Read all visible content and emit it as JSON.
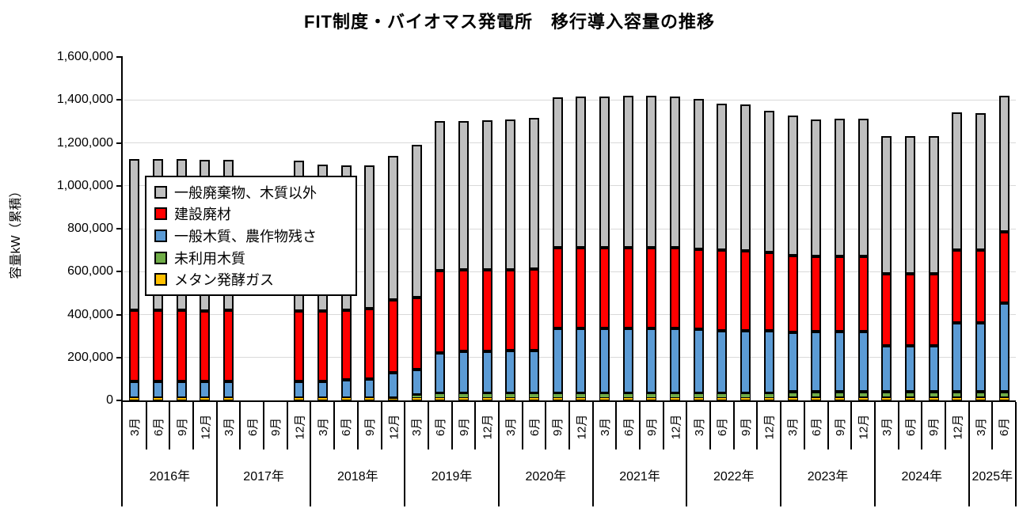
{
  "title": "FIT制度・バイオマス発電所　移行導入容量の推移",
  "y_axis": {
    "label": "容量kW（累積）",
    "tick_labels": [
      "0",
      "200,000",
      "400,000",
      "600,000",
      "800,000",
      "1,000,000",
      "1,200,000",
      "1,400,000",
      "1,600,000"
    ],
    "max": 1600000,
    "step": 200000
  },
  "x_axis": {
    "years": [
      {
        "label": "2016年",
        "months": [
          "3月",
          "6月",
          "9月",
          "12月"
        ]
      },
      {
        "label": "2017年",
        "months": [
          "3月",
          "6月",
          "9月",
          "12月"
        ]
      },
      {
        "label": "2018年",
        "months": [
          "3月",
          "6月",
          "9月",
          "12月"
        ]
      },
      {
        "label": "2019年",
        "months": [
          "3月",
          "6月",
          "9月",
          "12月"
        ]
      },
      {
        "label": "2020年",
        "months": [
          "3月",
          "6月",
          "9月",
          "12月"
        ]
      },
      {
        "label": "2021年",
        "months": [
          "3月",
          "6月",
          "9月",
          "12月"
        ]
      },
      {
        "label": "2022年",
        "months": [
          "3月",
          "6月",
          "9月",
          "12月"
        ]
      },
      {
        "label": "2023年",
        "months": [
          "3月",
          "6月",
          "9月",
          "12月"
        ]
      },
      {
        "label": "2024年",
        "months": [
          "3月",
          "6月",
          "9月",
          "12月"
        ]
      },
      {
        "label": "2025年",
        "months": [
          "3月",
          "6月"
        ]
      }
    ]
  },
  "legend": [
    {
      "name": "一般廃棄物、木質以外",
      "color": "#BFBFBF"
    },
    {
      "name": "建設廃材",
      "color": "#FF0000"
    },
    {
      "name": "一般木質、農作物残さ",
      "color": "#5B9BD5"
    },
    {
      "name": "未利用木質",
      "color": "#70AD47"
    },
    {
      "name": "メタン発酵ガス",
      "color": "#FFC000"
    }
  ],
  "chart_data": {
    "type": "bar",
    "stacked": true,
    "title": "FIT制度・バイオマス発電所　移行導入容量の推移",
    "ylabel": "容量kW（累積）",
    "unit": "kW",
    "ylim": [
      0,
      1600000
    ],
    "grid": true,
    "legend_position": "top-left-inside",
    "categories": [
      "2016年3月",
      "2016年6月",
      "2016年9月",
      "2016年12月",
      "2017年3月",
      "2017年6月",
      "2017年9月",
      "2017年12月",
      "2018年3月",
      "2018年6月",
      "2018年9月",
      "2018年12月",
      "2019年3月",
      "2019年6月",
      "2019年9月",
      "2019年12月",
      "2020年3月",
      "2020年6月",
      "2020年9月",
      "2020年12月",
      "2021年3月",
      "2021年6月",
      "2021年9月",
      "2021年12月",
      "2022年3月",
      "2022年6月",
      "2022年9月",
      "2022年12月",
      "2023年3月",
      "2023年6月",
      "2023年9月",
      "2023年12月",
      "2024年3月",
      "2024年6月",
      "2024年9月",
      "2024年12月",
      "2025年3月",
      "2025年6月"
    ],
    "series": [
      {
        "name": "メタン発酵ガス",
        "color": "#FFC000",
        "values": [
          8000,
          8000,
          8000,
          8000,
          8000,
          0,
          0,
          8000,
          8000,
          8000,
          8000,
          8000,
          10000,
          12000,
          12000,
          12000,
          12000,
          12000,
          12000,
          12000,
          12000,
          12000,
          12000,
          12000,
          12000,
          12000,
          12000,
          12000,
          10000,
          10000,
          10000,
          10000,
          10000,
          10000,
          10000,
          10000,
          10000,
          10000
        ]
      },
      {
        "name": "未利用木質",
        "color": "#70AD47",
        "values": [
          2000,
          2000,
          2000,
          2000,
          2000,
          0,
          0,
          2000,
          2000,
          2000,
          3000,
          4000,
          16000,
          21000,
          21000,
          21000,
          21000,
          21000,
          22000,
          22000,
          22000,
          22000,
          22000,
          22000,
          22000,
          22000,
          22000,
          22000,
          30000,
          30000,
          30000,
          30000,
          30000,
          30000,
          30000,
          30000,
          30000,
          30000
        ]
      },
      {
        "name": "一般木質、農作物残さ",
        "color": "#5B9BD5",
        "values": [
          78000,
          78000,
          78000,
          78000,
          78000,
          0,
          0,
          78000,
          80000,
          85000,
          89000,
          116000,
          117000,
          187000,
          195000,
          195000,
          198000,
          198000,
          300000,
          300000,
          300000,
          300000,
          300000,
          300000,
          296000,
          291000,
          289000,
          289000,
          278000,
          280000,
          280000,
          280000,
          213000,
          213000,
          213000,
          320000,
          320000,
          415000
        ]
      },
      {
        "name": "建設廃材",
        "color": "#FF0000",
        "values": [
          332000,
          332000,
          332000,
          330000,
          332000,
          0,
          0,
          330000,
          328000,
          327000,
          326000,
          342000,
          338000,
          385000,
          380000,
          380000,
          379000,
          381000,
          378000,
          378000,
          378000,
          378000,
          378000,
          376000,
          375000,
          375000,
          374000,
          367000,
          357000,
          352000,
          352000,
          352000,
          338000,
          338000,
          338000,
          340000,
          341000,
          330000
        ]
      },
      {
        "name": "一般廃棄物、木質以外",
        "color": "#BFBFBF",
        "values": [
          705000,
          705000,
          705000,
          703000,
          700000,
          0,
          0,
          698000,
          679000,
          672000,
          668000,
          671000,
          709000,
          695000,
          695000,
          697000,
          700000,
          703000,
          701000,
          705000,
          705000,
          708000,
          708000,
          707000,
          701000,
          684000,
          680000,
          661000,
          653000,
          638000,
          640000,
          642000,
          642000,
          642000,
          639000,
          643000,
          639000,
          635000
        ]
      }
    ]
  },
  "colors": {
    "grid": "#D9D9D9",
    "axis": "#000000",
    "background": "#FFFFFF"
  }
}
